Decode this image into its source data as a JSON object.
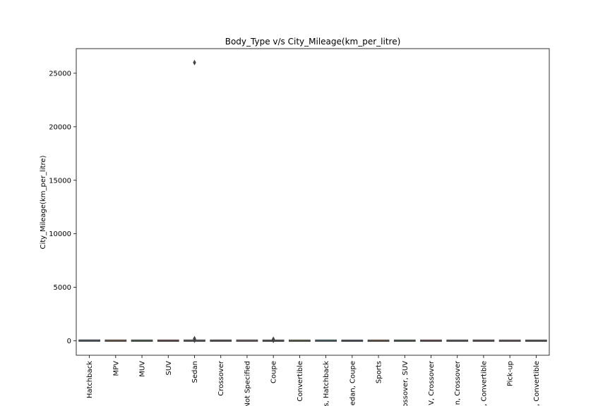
{
  "chart_data": {
    "type": "box",
    "title": "Body_Type v/s City_Mileage(km_per_litre)",
    "xlabel": "",
    "ylabel": "City_Mileage(km_per_litre)",
    "ylim": [
      -1350,
      27300
    ],
    "yticks": [
      0,
      5000,
      10000,
      15000,
      20000,
      25000
    ],
    "grid": false,
    "categories": [
      "Hatchback",
      "MPV",
      "MUV",
      "SUV",
      "Sedan",
      "Crossover",
      "Not Specified",
      "Coupe",
      "Convertible",
      "s, Hatchback",
      "edan, Coupe",
      "Sports",
      "rossover, SUV",
      "V, Crossover",
      "n, Crossover",
      ", Convertible",
      "Pick-up",
      ", Convertible"
    ],
    "boxes": [
      {
        "q1": 13,
        "median": 18,
        "q3": 22,
        "min": 5,
        "max": 30,
        "outliers": []
      },
      {
        "q1": 11,
        "median": 14,
        "q3": 17,
        "min": 6,
        "max": 24,
        "outliers": []
      },
      {
        "q1": 10,
        "median": 13,
        "q3": 16,
        "min": 6,
        "max": 22,
        "outliers": []
      },
      {
        "q1": 9,
        "median": 12,
        "q3": 15,
        "min": 5,
        "max": 22,
        "outliers": []
      },
      {
        "q1": 10,
        "median": 14,
        "q3": 17,
        "min": 4,
        "max": 26,
        "outliers": [
          26000,
          200,
          150,
          80,
          60
        ]
      },
      {
        "q1": 11,
        "median": 15,
        "q3": 18,
        "min": 6,
        "max": 25,
        "outliers": []
      },
      {
        "q1": 12,
        "median": 15,
        "q3": 18,
        "min": 8,
        "max": 22,
        "outliers": []
      },
      {
        "q1": 7,
        "median": 10,
        "q3": 13,
        "min": 4,
        "max": 18,
        "outliers": [
          150,
          100,
          60,
          40
        ]
      },
      {
        "q1": 8,
        "median": 11,
        "q3": 14,
        "min": 4,
        "max": 19,
        "outliers": []
      },
      {
        "q1": 12,
        "median": 15,
        "q3": 17,
        "min": 10,
        "max": 20,
        "outliers": []
      },
      {
        "q1": 7,
        "median": 9,
        "q3": 11,
        "min": 6,
        "max": 13,
        "outliers": []
      },
      {
        "q1": 7,
        "median": 10,
        "q3": 13,
        "min": 4,
        "max": 18,
        "outliers": []
      },
      {
        "q1": 10,
        "median": 12,
        "q3": 14,
        "min": 9,
        "max": 15,
        "outliers": []
      },
      {
        "q1": 10,
        "median": 12,
        "q3": 14,
        "min": 9,
        "max": 15,
        "outliers": []
      },
      {
        "q1": 10,
        "median": 12,
        "q3": 14,
        "min": 9,
        "max": 15,
        "outliers": []
      },
      {
        "q1": 10,
        "median": 13,
        "q3": 16,
        "min": 8,
        "max": 18,
        "outliers": []
      },
      {
        "q1": 9,
        "median": 11,
        "q3": 13,
        "min": 8,
        "max": 14,
        "outliers": []
      },
      {
        "q1": 8,
        "median": 10,
        "q3": 12,
        "min": 7,
        "max": 13,
        "outliers": []
      }
    ]
  }
}
